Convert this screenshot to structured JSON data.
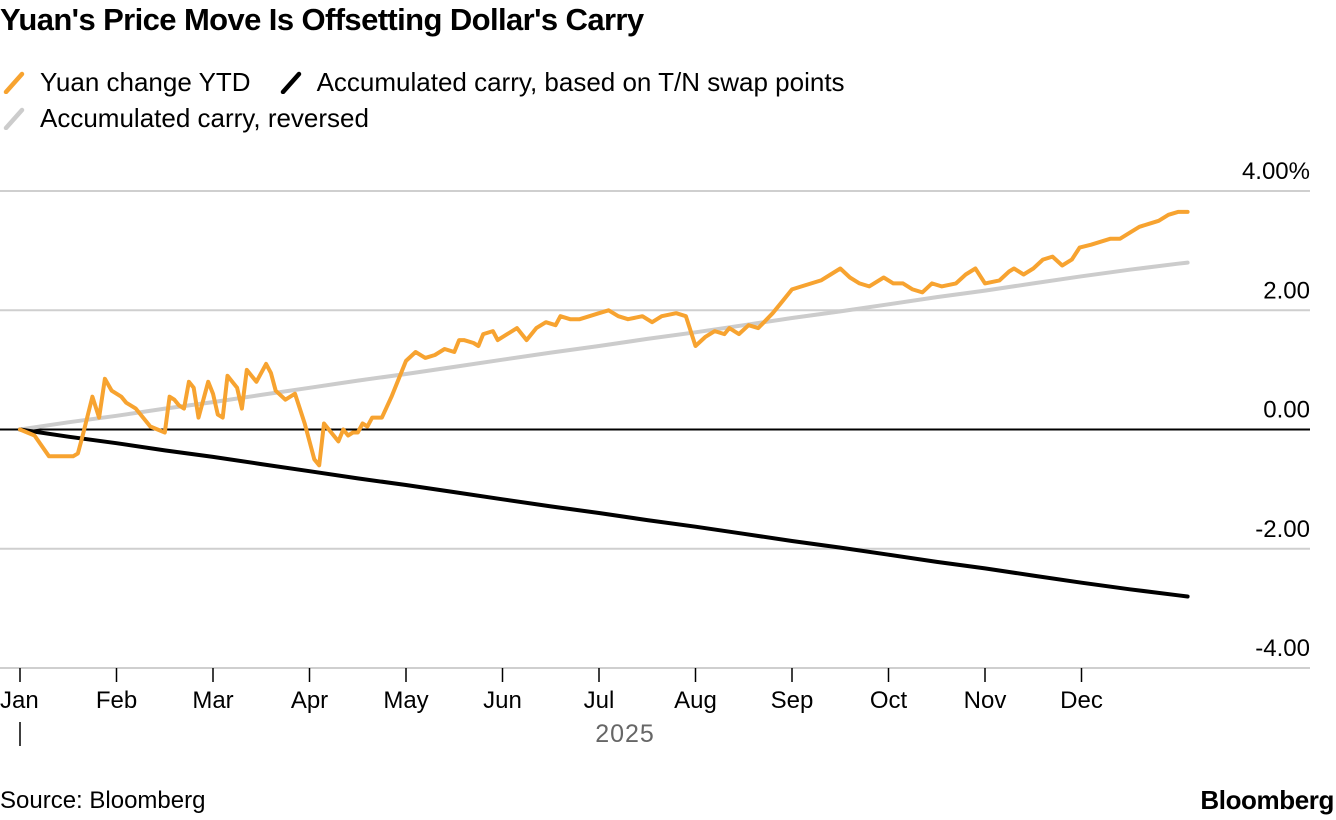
{
  "chart_data": {
    "type": "line",
    "title": "Yuan's Price Move Is Offsetting Dollar's Carry",
    "xlabel": "2025",
    "ylabel": "",
    "x_ticks": [
      "Jan",
      "Feb",
      "Mar",
      "Apr",
      "May",
      "Jun",
      "Jul",
      "Aug",
      "Sep",
      "Oct",
      "Nov",
      "Dec"
    ],
    "y_ticks": [
      "4.00%",
      "2.00",
      "0.00",
      "-2.00",
      "-4.00"
    ],
    "y_tick_values": [
      4,
      2,
      0,
      -2,
      -4
    ],
    "ylim": [
      -4,
      4
    ],
    "xlim": [
      0,
      12
    ],
    "grid": true,
    "legend_position": "top-left",
    "series": [
      {
        "name": "Yuan change YTD",
        "color": "#f7a330",
        "x": [
          0,
          0.15,
          0.3,
          0.5,
          0.55,
          0.6,
          0.65,
          0.75,
          0.82,
          0.88,
          0.95,
          1.05,
          1.1,
          1.2,
          1.35,
          1.5,
          1.55,
          1.6,
          1.65,
          1.7,
          1.75,
          1.8,
          1.85,
          1.95,
          2.0,
          2.05,
          2.1,
          2.15,
          2.25,
          2.3,
          2.35,
          2.45,
          2.55,
          2.6,
          2.65,
          2.75,
          2.85,
          2.95,
          3.0,
          3.05,
          3.1,
          3.15,
          3.2,
          3.3,
          3.35,
          3.4,
          3.45,
          3.5,
          3.55,
          3.6,
          3.65,
          3.75,
          3.85,
          4.0,
          4.1,
          4.2,
          4.3,
          4.4,
          4.5,
          4.55,
          4.6,
          4.7,
          4.75,
          4.8,
          4.9,
          4.95,
          5.05,
          5.15,
          5.25,
          5.35,
          5.45,
          5.55,
          5.6,
          5.7,
          5.8,
          5.9,
          6.0,
          6.1,
          6.2,
          6.3,
          6.45,
          6.55,
          6.65,
          6.8,
          6.9,
          7.0,
          7.1,
          7.2,
          7.3,
          7.35,
          7.45,
          7.55,
          7.65,
          7.8,
          7.9,
          8.0,
          8.1,
          8.2,
          8.3,
          8.4,
          8.5,
          8.6,
          8.7,
          8.8,
          8.95,
          9.05,
          9.15,
          9.25,
          9.35,
          9.45,
          9.55,
          9.7,
          9.8,
          9.9,
          10.0,
          10.15,
          10.25,
          10.3,
          10.4,
          10.5,
          10.6,
          10.7,
          10.8,
          10.9,
          10.98,
          11.1,
          11.2,
          11.3,
          11.4,
          11.5,
          11.6,
          11.7,
          11.8,
          11.9,
          12.0,
          12.1
        ],
        "values": [
          0.0,
          -0.1,
          -0.45,
          -0.45,
          -0.45,
          -0.4,
          -0.1,
          0.55,
          0.2,
          0.85,
          0.65,
          0.55,
          0.45,
          0.35,
          0.05,
          -0.05,
          0.55,
          0.5,
          0.4,
          0.35,
          0.8,
          0.7,
          0.2,
          0.8,
          0.6,
          0.25,
          0.2,
          0.9,
          0.7,
          0.35,
          1.0,
          0.8,
          1.1,
          0.95,
          0.65,
          0.5,
          0.6,
          0.1,
          -0.2,
          -0.5,
          -0.6,
          0.1,
          0.0,
          -0.2,
          0.0,
          -0.1,
          -0.05,
          -0.05,
          0.1,
          0.05,
          0.2,
          0.2,
          0.55,
          1.15,
          1.3,
          1.2,
          1.25,
          1.35,
          1.3,
          1.5,
          1.5,
          1.45,
          1.4,
          1.6,
          1.65,
          1.5,
          1.6,
          1.7,
          1.5,
          1.7,
          1.8,
          1.75,
          1.9,
          1.85,
          1.85,
          1.9,
          1.95,
          2.0,
          1.9,
          1.85,
          1.9,
          1.8,
          1.9,
          1.95,
          1.9,
          1.4,
          1.55,
          1.65,
          1.6,
          1.7,
          1.6,
          1.75,
          1.7,
          1.95,
          2.15,
          2.35,
          2.4,
          2.45,
          2.5,
          2.6,
          2.7,
          2.55,
          2.45,
          2.4,
          2.55,
          2.45,
          2.45,
          2.35,
          2.3,
          2.45,
          2.4,
          2.45,
          2.6,
          2.7,
          2.45,
          2.5,
          2.65,
          2.7,
          2.6,
          2.7,
          2.85,
          2.9,
          2.75,
          2.85,
          3.05,
          3.1,
          3.15,
          3.2,
          3.2,
          3.3,
          3.4,
          3.45,
          3.5,
          3.6,
          3.65,
          3.65
        ]
      },
      {
        "name": "Accumulated carry, based on T/N swap points",
        "color": "#000000",
        "x": [
          0,
          0.5,
          1.0,
          1.5,
          2.0,
          2.5,
          3.0,
          3.5,
          4.0,
          4.5,
          5.0,
          5.5,
          6.0,
          6.5,
          7.0,
          7.5,
          8.0,
          8.5,
          9.0,
          9.5,
          10.0,
          10.5,
          11.0,
          11.5,
          12.0,
          12.1
        ],
        "values": [
          0.0,
          -0.12,
          -0.23,
          -0.35,
          -0.46,
          -0.58,
          -0.7,
          -0.82,
          -0.93,
          -1.05,
          -1.17,
          -1.29,
          -1.4,
          -1.52,
          -1.63,
          -1.75,
          -1.87,
          -1.98,
          -2.1,
          -2.22,
          -2.33,
          -2.45,
          -2.57,
          -2.68,
          -2.78,
          -2.8
        ]
      },
      {
        "name": "Accumulated carry, reversed",
        "color": "#cccccc",
        "x": [
          0,
          0.5,
          1.0,
          1.5,
          2.0,
          2.5,
          3.0,
          3.5,
          4.0,
          4.5,
          5.0,
          5.5,
          6.0,
          6.5,
          7.0,
          7.5,
          8.0,
          8.5,
          9.0,
          9.5,
          10.0,
          10.5,
          11.0,
          11.5,
          12.0,
          12.1
        ],
        "values": [
          0.0,
          0.12,
          0.23,
          0.35,
          0.46,
          0.58,
          0.7,
          0.82,
          0.93,
          1.05,
          1.17,
          1.29,
          1.4,
          1.52,
          1.63,
          1.75,
          1.87,
          1.98,
          2.1,
          2.22,
          2.33,
          2.45,
          2.57,
          2.68,
          2.78,
          2.8
        ]
      }
    ]
  },
  "footer": {
    "source": "Source: Bloomberg",
    "brand": "Bloomberg"
  }
}
